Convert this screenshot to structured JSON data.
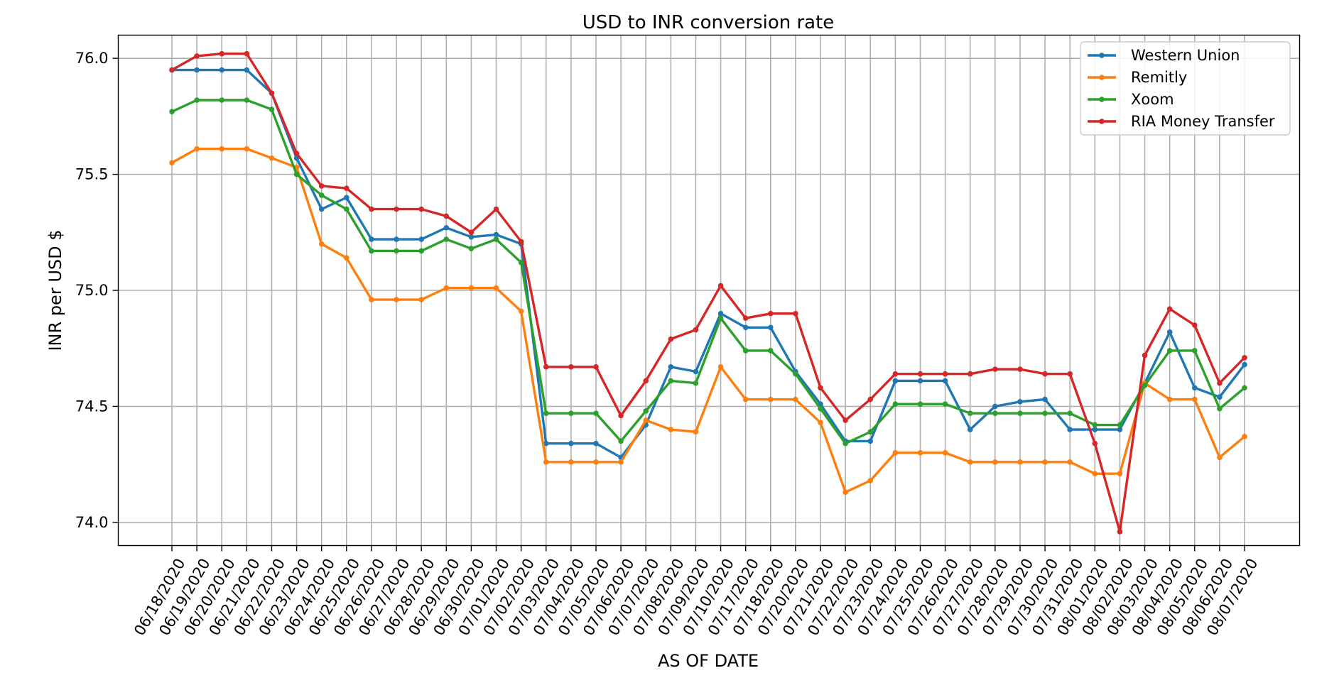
{
  "chart_data": {
    "type": "line",
    "title": "USD to INR conversion rate",
    "xlabel": "AS OF DATE",
    "ylabel": "INR per USD $",
    "ylim": [
      73.9,
      76.1
    ],
    "yticks": [
      74.0,
      74.5,
      75.0,
      75.5,
      76.0
    ],
    "ytick_labels": [
      "74.0",
      "74.5",
      "75.0",
      "75.5",
      "76.0"
    ],
    "grid": true,
    "legend_position": "top-right",
    "categories": [
      "06/18/2020",
      "06/19/2020",
      "06/20/2020",
      "06/21/2020",
      "06/22/2020",
      "06/23/2020",
      "06/24/2020",
      "06/25/2020",
      "06/26/2020",
      "06/27/2020",
      "06/28/2020",
      "06/29/2020",
      "06/30/2020",
      "07/01/2020",
      "07/02/2020",
      "07/03/2020",
      "07/04/2020",
      "07/05/2020",
      "07/06/2020",
      "07/07/2020",
      "07/08/2020",
      "07/09/2020",
      "07/10/2020",
      "07/17/2020",
      "07/18/2020",
      "07/20/2020",
      "07/21/2020",
      "07/22/2020",
      "07/23/2020",
      "07/24/2020",
      "07/25/2020",
      "07/26/2020",
      "07/27/2020",
      "07/28/2020",
      "07/29/2020",
      "07/30/2020",
      "07/31/2020",
      "08/01/2020",
      "08/02/2020",
      "08/03/2020",
      "08/04/2020",
      "08/05/2020",
      "08/06/2020",
      "08/07/2020"
    ],
    "series": [
      {
        "name": "Western Union",
        "color": "#1f77b4",
        "values": [
          75.95,
          75.95,
          75.95,
          75.95,
          75.85,
          75.57,
          75.35,
          75.4,
          75.22,
          75.22,
          75.22,
          75.27,
          75.23,
          75.24,
          75.2,
          74.34,
          74.34,
          74.34,
          74.28,
          74.42,
          74.67,
          74.65,
          74.9,
          74.84,
          74.84,
          74.65,
          74.51,
          74.35,
          74.35,
          74.61,
          74.61,
          74.61,
          74.4,
          74.5,
          74.52,
          74.53,
          74.4,
          74.4,
          74.4,
          74.6,
          74.82,
          74.58,
          74.54,
          74.68
        ]
      },
      {
        "name": "Remitly",
        "color": "#ff7f0e",
        "values": [
          75.55,
          75.61,
          75.61,
          75.61,
          75.57,
          75.53,
          75.2,
          75.14,
          74.96,
          74.96,
          74.96,
          75.01,
          75.01,
          75.01,
          74.91,
          74.26,
          74.26,
          74.26,
          74.26,
          74.44,
          74.4,
          74.39,
          74.67,
          74.53,
          74.53,
          74.53,
          74.43,
          74.13,
          74.18,
          74.3,
          74.3,
          74.3,
          74.26,
          74.26,
          74.26,
          74.26,
          74.26,
          74.21,
          74.21,
          74.6,
          74.53,
          74.53,
          74.28,
          74.37
        ]
      },
      {
        "name": "Xoom",
        "color": "#2ca02c",
        "values": [
          75.77,
          75.82,
          75.82,
          75.82,
          75.78,
          75.5,
          75.41,
          75.35,
          75.17,
          75.17,
          75.17,
          75.22,
          75.18,
          75.22,
          75.12,
          74.47,
          74.47,
          74.47,
          74.35,
          74.48,
          74.61,
          74.6,
          74.88,
          74.74,
          74.74,
          74.64,
          74.49,
          74.34,
          74.39,
          74.51,
          74.51,
          74.51,
          74.47,
          74.47,
          74.47,
          74.47,
          74.47,
          74.42,
          74.42,
          74.59,
          74.74,
          74.74,
          74.49,
          74.58
        ]
      },
      {
        "name": "RIA Money Transfer",
        "color": "#d62728",
        "values": [
          75.95,
          76.01,
          76.02,
          76.02,
          75.85,
          75.59,
          75.45,
          75.44,
          75.35,
          75.35,
          75.35,
          75.32,
          75.25,
          75.35,
          75.21,
          74.67,
          74.67,
          74.67,
          74.46,
          74.61,
          74.79,
          74.83,
          75.02,
          74.88,
          74.9,
          74.9,
          74.58,
          74.44,
          74.53,
          74.64,
          74.64,
          74.64,
          74.64,
          74.66,
          74.66,
          74.64,
          74.64,
          74.34,
          73.96,
          74.72,
          74.92,
          74.85,
          74.6,
          74.71
        ]
      }
    ]
  }
}
